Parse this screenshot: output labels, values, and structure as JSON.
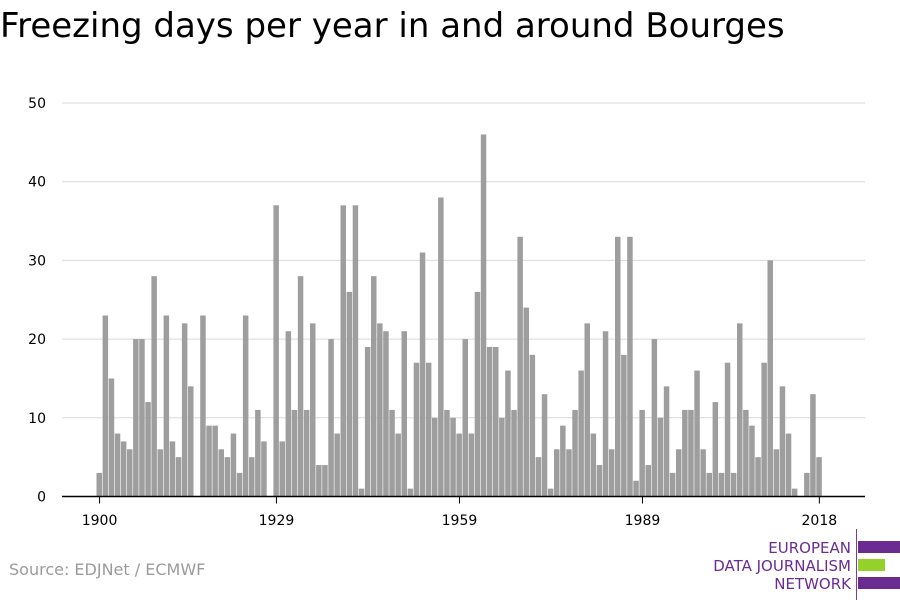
{
  "title": "Freezing days per year in and around Bourges",
  "source": "Source: EDJNet / ECMWF",
  "logo": {
    "line1": "EUROPEAN",
    "line2": "DATA JOURNALISM",
    "line3": "NETWORK",
    "colors": [
      "#6b2c91",
      "#94d12a",
      "#6b2c91"
    ]
  },
  "colors": {
    "bar": "#9e9e9e",
    "grid": "#d9d9d9",
    "axis": "#000000"
  },
  "chart_data": {
    "type": "bar",
    "title": "Freezing days per year in and around Bourges",
    "xlabel": "",
    "ylabel": "",
    "ylim": [
      0,
      50
    ],
    "yticks": [
      0,
      10,
      20,
      30,
      40,
      50
    ],
    "xticks": [
      1900,
      1929,
      1959,
      1989,
      2018
    ],
    "x_start": 1900,
    "x_end": 2018,
    "grid": true,
    "x": [
      1900,
      1901,
      1902,
      1903,
      1904,
      1905,
      1906,
      1907,
      1908,
      1909,
      1910,
      1911,
      1912,
      1913,
      1914,
      1915,
      1916,
      1917,
      1918,
      1919,
      1920,
      1921,
      1922,
      1923,
      1924,
      1925,
      1926,
      1927,
      1928,
      1929,
      1930,
      1931,
      1932,
      1933,
      1934,
      1935,
      1936,
      1937,
      1938,
      1939,
      1940,
      1941,
      1942,
      1943,
      1944,
      1945,
      1946,
      1947,
      1948,
      1949,
      1950,
      1951,
      1952,
      1953,
      1954,
      1955,
      1956,
      1957,
      1958,
      1959,
      1960,
      1961,
      1962,
      1963,
      1964,
      1965,
      1966,
      1967,
      1968,
      1969,
      1970,
      1971,
      1972,
      1973,
      1974,
      1975,
      1976,
      1977,
      1978,
      1979,
      1980,
      1981,
      1982,
      1983,
      1984,
      1985,
      1986,
      1987,
      1988,
      1989,
      1990,
      1991,
      1992,
      1993,
      1994,
      1995,
      1996,
      1997,
      1998,
      1999,
      2000,
      2001,
      2002,
      2003,
      2004,
      2005,
      2006,
      2007,
      2008,
      2009,
      2010,
      2011,
      2012,
      2013,
      2014,
      2015,
      2016,
      2017,
      2018
    ],
    "values": [
      3,
      23,
      15,
      8,
      7,
      6,
      20,
      20,
      12,
      28,
      6,
      23,
      7,
      5,
      22,
      14,
      0,
      23,
      9,
      9,
      6,
      5,
      8,
      3,
      23,
      5,
      11,
      7,
      0,
      37,
      7,
      21,
      11,
      28,
      11,
      22,
      4,
      4,
      20,
      8,
      37,
      26,
      37,
      1,
      19,
      28,
      22,
      21,
      11,
      8,
      21,
      1,
      17,
      31,
      17,
      10,
      38,
      11,
      10,
      8,
      20,
      8,
      26,
      46,
      19,
      19,
      10,
      16,
      11,
      33,
      24,
      18,
      5,
      13,
      1,
      6,
      9,
      6,
      11,
      16,
      22,
      8,
      4,
      21,
      6,
      33,
      18,
      33,
      2,
      11,
      4,
      20,
      10,
      14,
      3,
      6,
      11,
      11,
      16,
      6,
      3,
      12,
      3,
      17,
      3,
      22,
      11,
      9,
      5,
      17,
      30,
      6,
      14,
      8,
      1,
      0,
      3,
      13,
      5
    ]
  }
}
